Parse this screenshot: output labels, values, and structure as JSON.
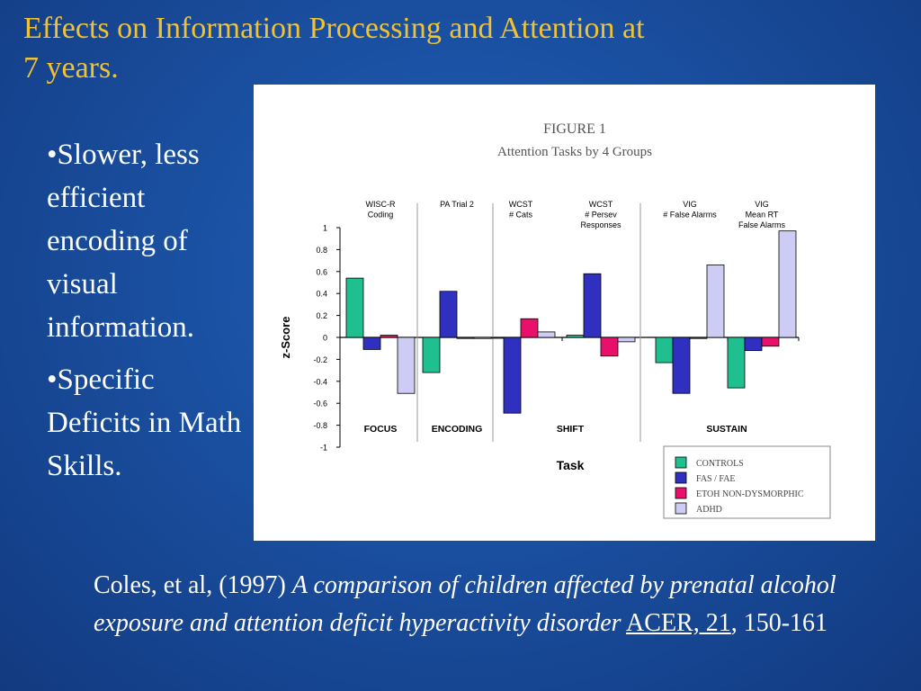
{
  "slide": {
    "title_line1": "Effects on Information Processing and Attention at",
    "title_line2": "7 years.",
    "bullets": [
      "•Slower, less efficient encoding of visual information.",
      "•Specific Deficits in Math Skills."
    ],
    "citation": {
      "prefix": "Coles, et al, (1997) ",
      "italic": "A comparison of children affected by prenatal alcohol exposure and attention deficit hyperactivity disorder",
      "space": " ",
      "journal": "ACER, 21",
      "suffix": ", 150-161"
    }
  },
  "chart_data": {
    "type": "bar",
    "title": "FIGURE 1",
    "subtitle": "Attention Tasks by 4 Groups",
    "xlabel": "Task",
    "ylabel": "z-Score",
    "ylim": [
      -1,
      1
    ],
    "yticks": [
      "1",
      "0.8",
      "0.6",
      "0.4",
      "0.2",
      "0",
      "-0.2",
      "-0.4",
      "-0.6",
      "-0.8",
      "-1"
    ],
    "categories": [
      [
        "WISC-R",
        "Coding"
      ],
      [
        "PA Trial 2"
      ],
      [
        "WCST",
        "# Cats"
      ],
      [
        "WCST",
        "# Persev",
        "Responses"
      ],
      [
        "VIG",
        "# False Alarms"
      ],
      [
        "VIG",
        "Mean RT",
        "False Alarms"
      ]
    ],
    "groups": [
      "FOCUS",
      "ENCODING",
      "SHIFT",
      "SUSTAIN"
    ],
    "series": [
      {
        "name": "CONTROLS",
        "color": "#1fbf8f",
        "values": [
          0.54,
          -0.32,
          0,
          0.02,
          -0.23,
          -0.46
        ]
      },
      {
        "name": "FAS / FAE",
        "color": "#3030c0",
        "values": [
          -0.11,
          0.42,
          -0.69,
          0.58,
          -0.51,
          -0.12
        ]
      },
      {
        "name": "ETOH NON-DYSMORPHIC",
        "color": "#e8106a",
        "values": [
          0.02,
          -0.01,
          0.17,
          -0.17,
          -0.01,
          -0.08
        ]
      },
      {
        "name": "ADHD",
        "color": "#ccccf5",
        "values": [
          -0.51,
          -0.01,
          0.05,
          -0.04,
          0.66,
          0.97
        ]
      }
    ],
    "legend": "bottom-right",
    "grid": false
  }
}
